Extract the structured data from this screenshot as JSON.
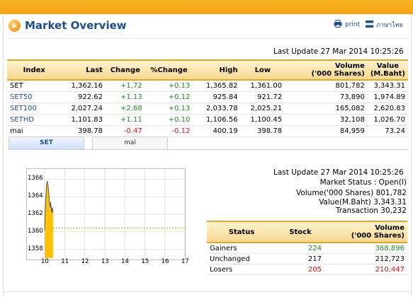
{
  "header": {
    "title": "Market Overview",
    "print_label": "print",
    "thai_label": "ภาษาไทย"
  },
  "index_section": {
    "last_update": "Last Update 27 Mar 2014 10:25:26",
    "columns": [
      "Index",
      "Last",
      "Change",
      "%Change",
      "High",
      "Low",
      "Volume\n('000 Shares)",
      "Value\n(M.Baht)"
    ],
    "col_index": "Index",
    "col_last": "Last",
    "col_change": "Change",
    "col_pchange": "%Change",
    "col_high": "High",
    "col_low": "Low",
    "col_volume_1": "Volume",
    "col_volume_2": "('000 Shares)",
    "col_value_1": "Value",
    "col_value_2": "(M.Baht)",
    "rows": [
      {
        "index": "SET",
        "last": "1,362.16",
        "change": "+1.72",
        "pchange": "+0.13",
        "high": "1,365.82",
        "low": "1,361.00",
        "volume": "801,782",
        "value": "3,343.31"
      },
      {
        "index": "SET50",
        "last": "922.62",
        "change": "+1.13",
        "pchange": "+0.12",
        "high": "925.84",
        "low": "921.72",
        "volume": "73,890",
        "value": "1,974.89"
      },
      {
        "index": "SET100",
        "last": "2,027.24",
        "change": "+2.68",
        "pchange": "+0.13",
        "high": "2,033.78",
        "low": "2,025.21",
        "volume": "165,082",
        "value": "2,620.83"
      },
      {
        "index": "SETHD",
        "last": "1,101.83",
        "change": "+1.11",
        "pchange": "+0.10",
        "high": "1,106.56",
        "low": "1,100.45",
        "volume": "32,108",
        "value": "1,026.70"
      },
      {
        "index": "mai",
        "last": "398.78",
        "change": "-0.47",
        "pchange": "-0.12",
        "high": "400.19",
        "low": "398.78",
        "volume": "84,959",
        "value": "73.24"
      }
    ]
  },
  "tabs": [
    {
      "label": "SET",
      "active": true
    },
    {
      "label": "mai",
      "active": false
    }
  ],
  "chart_data": {
    "type": "area",
    "x_ticks": [
      "10",
      "11",
      "12",
      "13",
      "14",
      "15",
      "16",
      "17"
    ],
    "y_ticks": [
      "1366",
      "1364",
      "1362",
      "1360",
      "1358"
    ],
    "xlim": [
      10,
      17
    ],
    "ylim": [
      1357,
      1367
    ],
    "reference_value": 1360.44,
    "x": [
      10.0,
      10.05,
      10.1,
      10.13,
      10.17,
      10.2,
      10.22,
      10.25,
      10.28,
      10.3,
      10.33,
      10.35,
      10.38,
      10.42
    ],
    "y": [
      1360.2,
      1363.6,
      1365.4,
      1365.8,
      1365.3,
      1364.6,
      1364.0,
      1363.2,
      1362.8,
      1363.4,
      1362.6,
      1362.2,
      1362.8,
      1362.2
    ],
    "colors": {
      "fill": "#ffc107",
      "line": "#555555",
      "reference": "#f3a416"
    }
  },
  "market_summary": {
    "last_update": "Last Update 27 Mar 2014 10:25:26",
    "market_status": "Market Status : Open(I)",
    "volume": "Volume('000 Shares) 801,782",
    "value": "Value(M.Baht) 3,343.31",
    "transaction": "Transaction 30,232"
  },
  "status_table": {
    "col_status": "Status",
    "col_stock": "Stock",
    "col_volume_1": "Volume",
    "col_volume_2": "('000 Shares)",
    "rows": [
      {
        "status": "Gainers",
        "stock": "224",
        "volume": "368,896",
        "color": "#1c8b1c"
      },
      {
        "status": "Unchanged",
        "stock": "217",
        "volume": "212,723",
        "color": "#000000"
      },
      {
        "status": "Losers",
        "stock": "205",
        "volume": "210,447",
        "color": "#d11111"
      }
    ]
  },
  "colors": {
    "accent": "#f3a416",
    "title_blue": "#1f4e8c",
    "up": "#1c8b1c",
    "down": "#d11111"
  }
}
